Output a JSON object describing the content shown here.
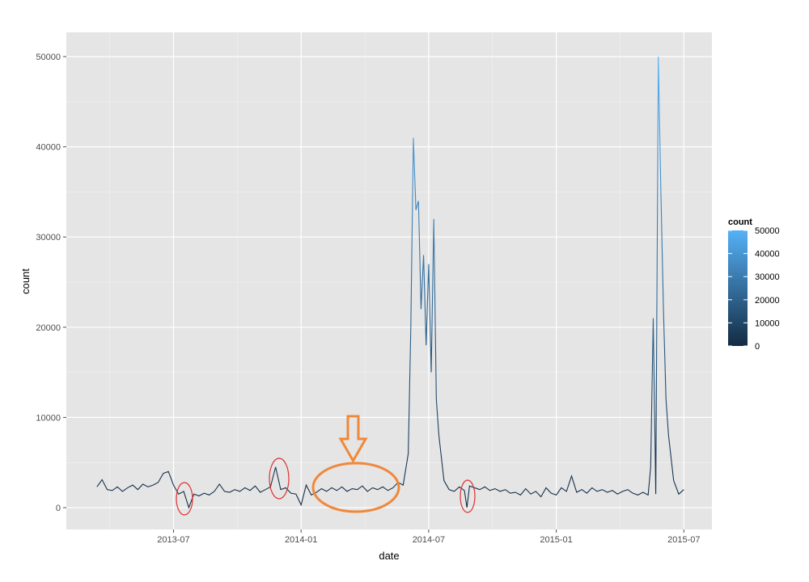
{
  "chart_data": {
    "type": "line",
    "x_label": "date",
    "y_label": "count",
    "xlim": [
      2013.08,
      2015.61
    ],
    "ylim": [
      -2420,
      52690
    ],
    "xticks": [
      {
        "value": 2013.5,
        "label": "2013-07"
      },
      {
        "value": 2014.0,
        "label": "2014-01"
      },
      {
        "value": 2014.5,
        "label": "2014-07"
      },
      {
        "value": 2015.0,
        "label": "2015-01"
      },
      {
        "value": 2015.5,
        "label": "2015-07"
      }
    ],
    "yticks": [
      0,
      10000,
      20000,
      30000,
      40000,
      50000
    ],
    "grid": true,
    "x": [
      2013.2,
      2013.22,
      2013.24,
      2013.26,
      2013.28,
      2013.3,
      2013.32,
      2013.34,
      2013.36,
      2013.38,
      2013.4,
      2013.42,
      2013.44,
      2013.46,
      2013.48,
      2013.5,
      2013.52,
      2013.54,
      2013.56,
      2013.58,
      2013.6,
      2013.62,
      2013.64,
      2013.66,
      2013.68,
      2013.7,
      2013.72,
      2013.74,
      2013.76,
      2013.78,
      2013.8,
      2013.82,
      2013.84,
      2013.86,
      2013.88,
      2013.9,
      2013.92,
      2013.94,
      2013.96,
      2013.98,
      2014.0,
      2014.02,
      2014.04,
      2014.06,
      2014.08,
      2014.1,
      2014.12,
      2014.14,
      2014.16,
      2014.18,
      2014.2,
      2014.22,
      2014.24,
      2014.26,
      2014.28,
      2014.3,
      2014.32,
      2014.34,
      2014.36,
      2014.38,
      2014.4,
      2014.42,
      2014.43,
      2014.44,
      2014.45,
      2014.46,
      2014.47,
      2014.48,
      2014.49,
      2014.5,
      2014.51,
      2014.52,
      2014.53,
      2014.54,
      2014.56,
      2014.58,
      2014.6,
      2014.62,
      2014.64,
      2014.65,
      2014.66,
      2014.68,
      2014.7,
      2014.72,
      2014.74,
      2014.76,
      2014.78,
      2014.8,
      2014.82,
      2014.84,
      2014.86,
      2014.88,
      2014.9,
      2014.92,
      2014.94,
      2014.96,
      2014.98,
      2015.0,
      2015.02,
      2015.04,
      2015.06,
      2015.08,
      2015.1,
      2015.12,
      2015.14,
      2015.16,
      2015.18,
      2015.2,
      2015.22,
      2015.24,
      2015.26,
      2015.28,
      2015.3,
      2015.32,
      2015.34,
      2015.36,
      2015.37,
      2015.38,
      2015.39,
      2015.4,
      2015.41,
      2015.42,
      2015.43,
      2015.44,
      2015.46,
      2015.48,
      2015.5
    ],
    "values": [
      2300,
      3100,
      2000,
      1900,
      2300,
      1800,
      2200,
      2500,
      2000,
      2600,
      2300,
      2500,
      2800,
      3800,
      4000,
      2500,
      1500,
      1800,
      0,
      1500,
      1300,
      1600,
      1400,
      1800,
      2600,
      1800,
      1700,
      2000,
      1800,
      2200,
      1900,
      2400,
      1700,
      2000,
      2300,
      4500,
      2000,
      2200,
      1600,
      1500,
      300,
      2500,
      1400,
      1700,
      2100,
      1800,
      2200,
      1900,
      2300,
      1800,
      2100,
      2000,
      2400,
      1800,
      2200,
      2000,
      2300,
      1900,
      2200,
      2800,
      2500,
      6000,
      20000,
      41000,
      33000,
      34000,
      22000,
      28000,
      18000,
      27000,
      15000,
      32000,
      12000,
      8000,
      3000,
      2000,
      1800,
      2300,
      1900,
      0,
      2400,
      2200,
      2000,
      2300,
      1900,
      2100,
      1800,
      2000,
      1600,
      1700,
      1400,
      2100,
      1500,
      1800,
      1200,
      2200,
      1600,
      1400,
      2200,
      1800,
      3500,
      1700,
      2000,
      1600,
      2200,
      1800,
      2000,
      1700,
      1900,
      1500,
      1800,
      2000,
      1600,
      1400,
      1700,
      1400,
      4500,
      21000,
      1500,
      50000,
      35000,
      22000,
      12000,
      8000,
      3000,
      1500,
      2000
    ],
    "color_scale": {
      "title": "count",
      "low": "#132B43",
      "high": "#56B1F7",
      "lim": [
        0,
        50000
      ],
      "ticks": [
        0,
        10000,
        20000,
        30000,
        40000,
        50000
      ]
    }
  }
}
